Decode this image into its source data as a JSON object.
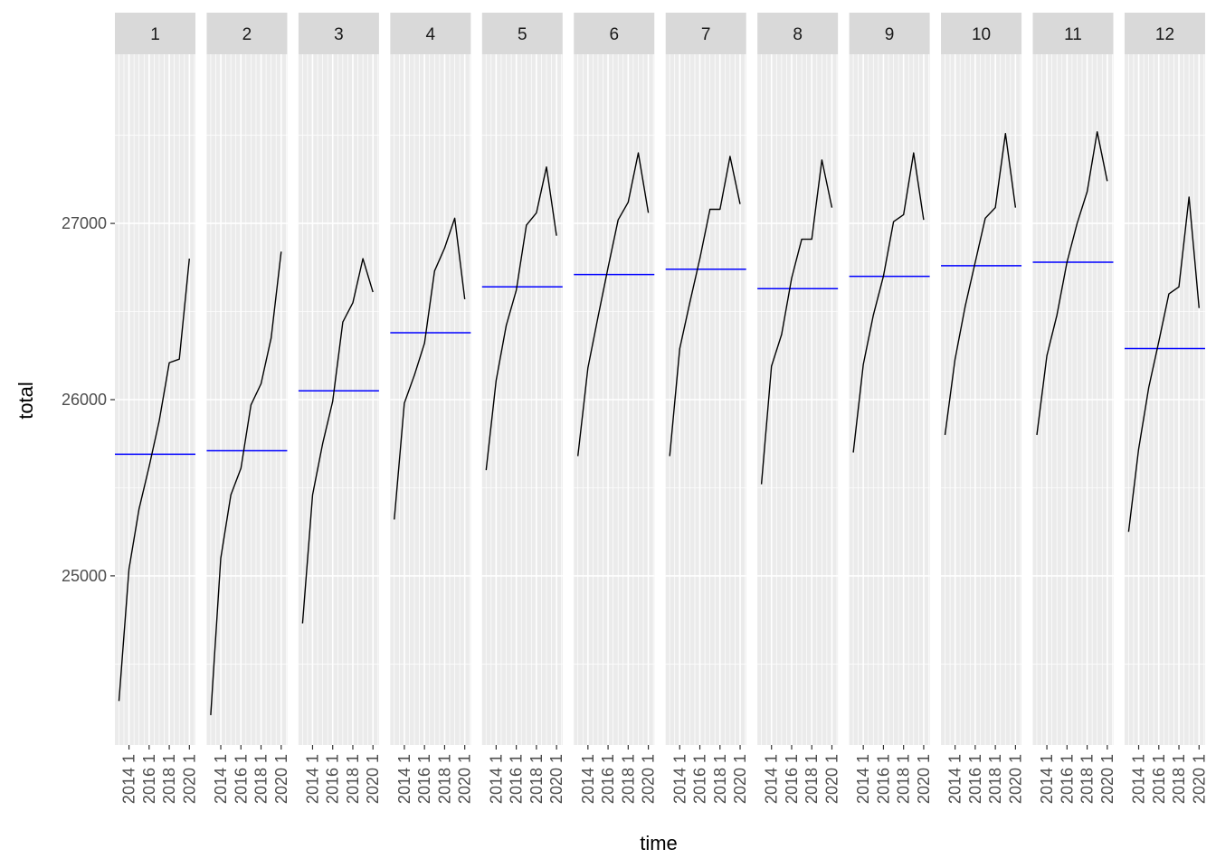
{
  "chart_data": {
    "type": "line",
    "xlabel": "time",
    "ylabel": "total",
    "ylim": [
      24040,
      27960
    ],
    "y_ticks": [
      25000,
      26000,
      27000
    ],
    "y_tick_labels": [
      "25000",
      "26000",
      "27000"
    ],
    "x_ticks": [
      2014,
      2016,
      2018,
      2020
    ],
    "x_tick_labels": [
      "2014 1",
      "2016 1",
      "2018 1",
      "2020 1"
    ],
    "xlim": [
      2012.6,
      2020.6
    ],
    "grid": true,
    "mean_line_color": "#0000ff",
    "series_color": "#000000",
    "panels": [
      {
        "label": "1",
        "x": [
          2013,
          2014,
          2015,
          2016,
          2017,
          2018,
          2019,
          2020
        ],
        "y": [
          24290,
          25040,
          25380,
          25620,
          25880,
          26210,
          26230,
          26800
        ],
        "mean": 25690
      },
      {
        "label": "2",
        "x": [
          2013,
          2014,
          2015,
          2016,
          2017,
          2018,
          2019,
          2020
        ],
        "y": [
          24210,
          25100,
          25460,
          25610,
          25970,
          26090,
          26350,
          26840
        ],
        "mean": 25710
      },
      {
        "label": "3",
        "x": [
          2013,
          2014,
          2015,
          2016,
          2017,
          2018,
          2019,
          2020
        ],
        "y": [
          24730,
          25460,
          25750,
          25990,
          26440,
          26550,
          26800,
          26610
        ],
        "mean": 26050
      },
      {
        "label": "4",
        "x": [
          2013,
          2014,
          2015,
          2016,
          2017,
          2018,
          2019,
          2020
        ],
        "y": [
          25320,
          25980,
          26140,
          26320,
          26730,
          26860,
          27030,
          26570
        ],
        "mean": 26380
      },
      {
        "label": "5",
        "x": [
          2013,
          2014,
          2015,
          2016,
          2017,
          2018,
          2019,
          2020
        ],
        "y": [
          25600,
          26110,
          26420,
          26620,
          26990,
          27060,
          27320,
          26930
        ],
        "mean": 26640
      },
      {
        "label": "6",
        "x": [
          2013,
          2014,
          2015,
          2016,
          2017,
          2018,
          2019,
          2020
        ],
        "y": [
          25680,
          26180,
          26470,
          26750,
          27020,
          27120,
          27400,
          27060
        ],
        "mean": 26710
      },
      {
        "label": "7",
        "x": [
          2013,
          2014,
          2015,
          2016,
          2017,
          2018,
          2019,
          2020
        ],
        "y": [
          25680,
          26290,
          26550,
          26800,
          27080,
          27080,
          27380,
          27110
        ],
        "mean": 26740
      },
      {
        "label": "8",
        "x": [
          2013,
          2014,
          2015,
          2016,
          2017,
          2018,
          2019,
          2020
        ],
        "y": [
          25520,
          26190,
          26370,
          26690,
          26910,
          26910,
          27360,
          27090
        ],
        "mean": 26630
      },
      {
        "label": "9",
        "x": [
          2013,
          2014,
          2015,
          2016,
          2017,
          2018,
          2019,
          2020
        ],
        "y": [
          25700,
          26200,
          26480,
          26700,
          27010,
          27050,
          27400,
          27020
        ],
        "mean": 26700
      },
      {
        "label": "10",
        "x": [
          2013,
          2014,
          2015,
          2016,
          2017,
          2018,
          2019,
          2020
        ],
        "y": [
          25800,
          26230,
          26530,
          26780,
          27030,
          27090,
          27510,
          27090
        ],
        "mean": 26760
      },
      {
        "label": "11",
        "x": [
          2013,
          2014,
          2015,
          2016,
          2017,
          2018,
          2019,
          2020
        ],
        "y": [
          25800,
          26250,
          26480,
          26780,
          27000,
          27180,
          27520,
          27240
        ],
        "mean": 26780
      },
      {
        "label": "12",
        "x": [
          2013,
          2014,
          2015,
          2016,
          2017,
          2018,
          2019,
          2020
        ],
        "y": [
          25250,
          25720,
          26070,
          26330,
          26600,
          26640,
          27150,
          26520
        ],
        "mean": 26290
      }
    ]
  }
}
